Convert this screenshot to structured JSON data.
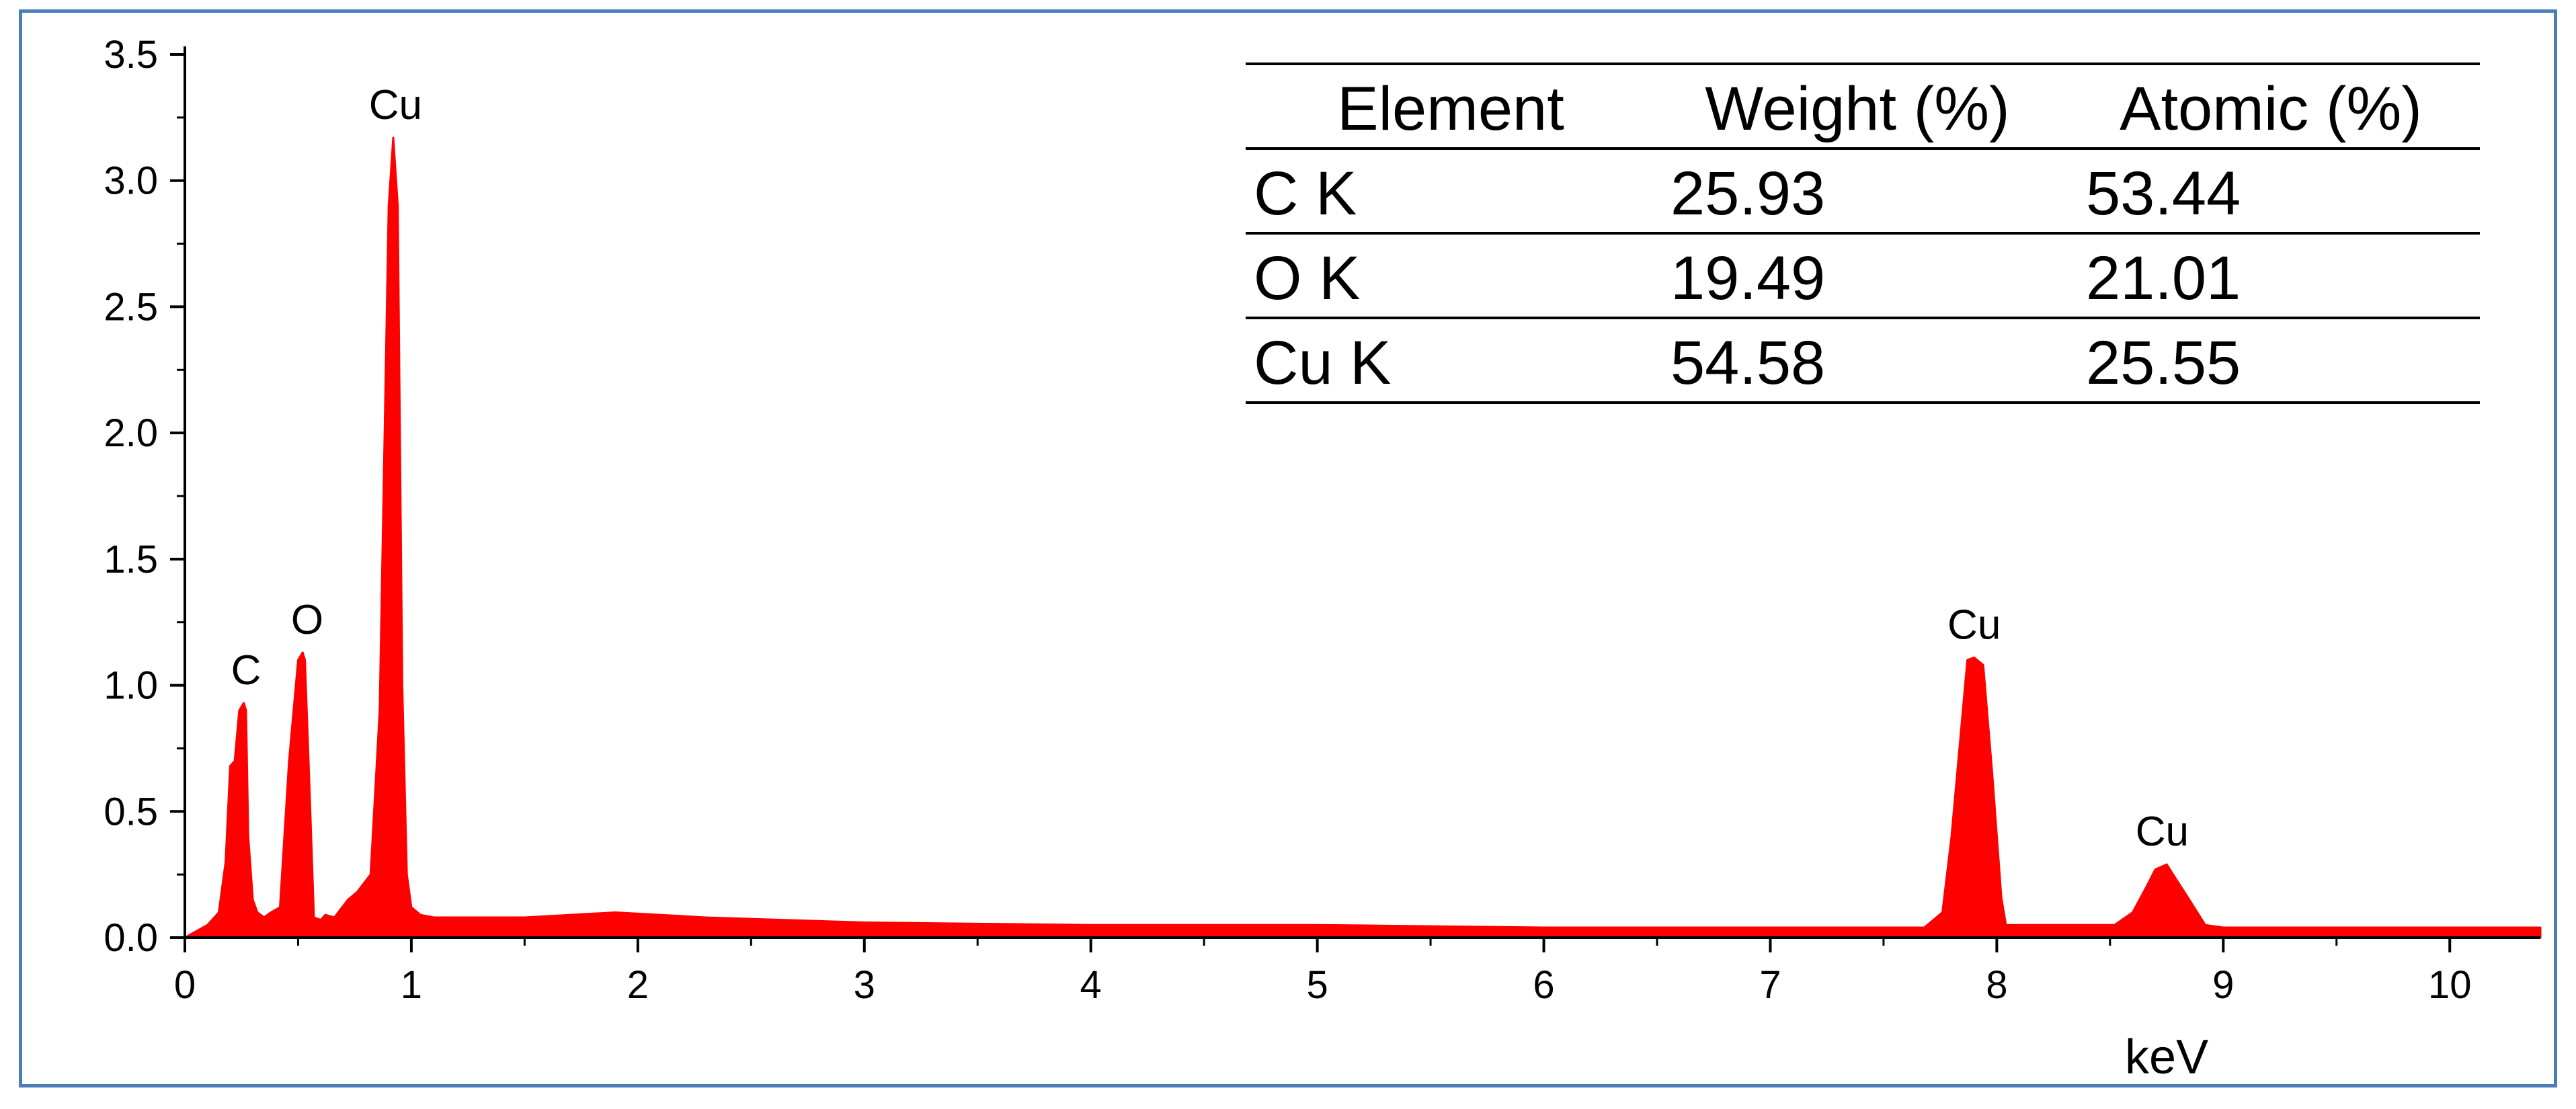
{
  "chart_data": {
    "type": "area",
    "xlabel": "keV",
    "ylabel": "",
    "xlim": [
      0,
      10.4
    ],
    "ylim": [
      0,
      3.5
    ],
    "x_ticks": [
      "0",
      "1",
      "2",
      "3",
      "4",
      "5",
      "6",
      "7",
      "8",
      "9",
      "10"
    ],
    "y_ticks": [
      "0.0",
      "0.5",
      "1.0",
      "1.5",
      "2.0",
      "2.5",
      "3.0",
      "3.5"
    ],
    "grid": false,
    "fill_color": "#ff0000",
    "series": [
      {
        "x": [
          0,
          0.1,
          0.15,
          0.18,
          0.2,
          0.22,
          0.23,
          0.24,
          0.26,
          0.27,
          0.28,
          0.3,
          0.32,
          0.35,
          0.38,
          0.42,
          0.46,
          0.48,
          0.5,
          0.52,
          0.53,
          0.55,
          0.57,
          0.6,
          0.62,
          0.66,
          0.72,
          0.76,
          0.82,
          0.86,
          0.88,
          0.9,
          0.92,
          0.94,
          0.96,
          0.98,
          1.0,
          1.04,
          1.1,
          1.2,
          1.5,
          1.9,
          2.3,
          3.0,
          4.0,
          5.0,
          6.0,
          7.0,
          7.68,
          7.76,
          7.8,
          7.84,
          7.87,
          7.9,
          7.94,
          7.98,
          8.02,
          8.04,
          8.07,
          8.3,
          8.52,
          8.6,
          8.66,
          8.7,
          8.75,
          8.8,
          8.85,
          8.92,
          9.0,
          10.4
        ],
        "y": [
          0.0,
          0.05,
          0.1,
          0.3,
          0.68,
          0.7,
          0.8,
          0.9,
          0.93,
          0.9,
          0.4,
          0.15,
          0.1,
          0.08,
          0.1,
          0.12,
          0.7,
          0.9,
          1.1,
          1.13,
          1.1,
          0.6,
          0.08,
          0.07,
          0.09,
          0.08,
          0.15,
          0.18,
          0.25,
          0.9,
          1.9,
          2.9,
          3.17,
          2.9,
          1.0,
          0.25,
          0.12,
          0.09,
          0.08,
          0.08,
          0.08,
          0.1,
          0.08,
          0.06,
          0.05,
          0.05,
          0.04,
          0.04,
          0.04,
          0.1,
          0.4,
          0.8,
          1.1,
          1.11,
          1.08,
          0.65,
          0.16,
          0.05,
          0.05,
          0.05,
          0.05,
          0.1,
          0.2,
          0.27,
          0.29,
          0.22,
          0.15,
          0.05,
          0.04,
          0.04
        ]
      }
    ],
    "annotations": [
      {
        "text": "C",
        "x": 0.27,
        "y": 0.93
      },
      {
        "text": "O",
        "x": 0.54,
        "y": 1.13
      },
      {
        "text": "Cu",
        "x": 0.93,
        "y": 3.17
      },
      {
        "text": "Cu",
        "x": 7.9,
        "y": 1.11
      },
      {
        "text": "Cu",
        "x": 8.73,
        "y": 0.29
      }
    ],
    "table": {
      "headers": [
        "Element",
        "Weight (%)",
        "Atomic (%)"
      ],
      "rows": [
        [
          "C K",
          "25.93",
          "53.44"
        ],
        [
          "O K",
          "19.49",
          "21.01"
        ],
        [
          "Cu K",
          "54.58",
          "25.55"
        ]
      ]
    }
  }
}
